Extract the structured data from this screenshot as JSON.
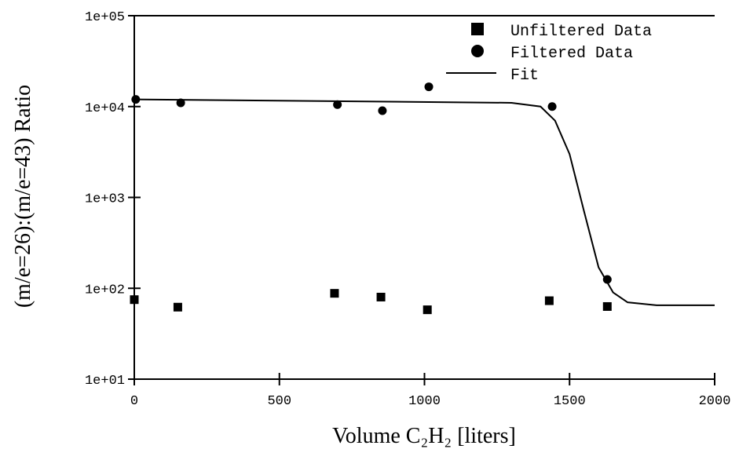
{
  "chart_data": {
    "type": "scatter",
    "xlabel": "Volume C₂H₂ [liters]",
    "ylabel": "(m/e=26):(m/e=43) Ratio",
    "xlim": [
      0,
      2000
    ],
    "xticks": [
      0,
      500,
      1000,
      1500,
      2000
    ],
    "ylim": [
      10,
      100000
    ],
    "yscale": "log",
    "yticks": [
      {
        "value": 10,
        "label": "1e+01"
      },
      {
        "value": 100,
        "label": "1e+02"
      },
      {
        "value": 1000,
        "label": "1e+03"
      },
      {
        "value": 10000,
        "label": "1e+04"
      },
      {
        "value": 100000,
        "label": "1e+05"
      }
    ],
    "legend": "upper right",
    "series": [
      {
        "name": "Unfiltered Data",
        "style": "square",
        "color": "#000000",
        "x": [
          0,
          150,
          690,
          850,
          1010,
          1430,
          1630
        ],
        "values": [
          75,
          62,
          88,
          80,
          58,
          73,
          63
        ]
      },
      {
        "name": "Filtered Data",
        "style": "circle",
        "color": "#000000",
        "x": [
          5,
          160,
          700,
          855,
          1015,
          1440,
          1630
        ],
        "values": [
          12000,
          11000,
          10500,
          9000,
          16500,
          10000,
          125
        ]
      },
      {
        "name": "Fit",
        "style": "line",
        "color": "#000000",
        "x": [
          0,
          1300,
          1400,
          1450,
          1500,
          1550,
          1600,
          1650,
          1700,
          1800,
          2000
        ],
        "values": [
          12000,
          11000,
          10000,
          7000,
          3000,
          700,
          170,
          90,
          70,
          65,
          65
        ]
      }
    ]
  }
}
